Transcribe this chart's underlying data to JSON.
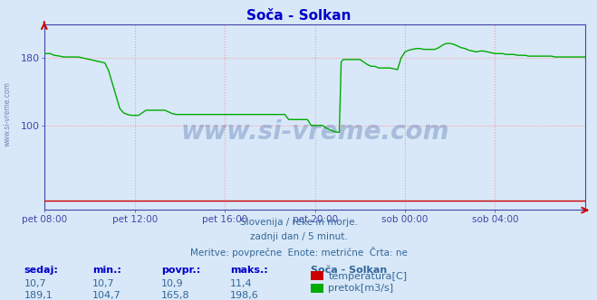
{
  "title": "Soča - Solkan",
  "title_color": "#0000cc",
  "bg_color": "#d8e8f8",
  "plot_bg_color": "#d8e8f8",
  "grid_color": "#ff9999",
  "grid_style": ":",
  "axis_color": "#4444aa",
  "watermark_text": "www.si-vreme.com",
  "watermark_color": "#1a3a8a",
  "watermark_alpha": 0.25,
  "subtitle1": "Slovenija / reke in morje.",
  "subtitle2": "zadnji dan / 5 minut.",
  "subtitle3": "Meritve: povprečne  Enote: metrične  Črta: ne",
  "subtitle_color": "#336699",
  "xlabel_color": "#336699",
  "legend_title": "Soča - Solkan",
  "legend_title_color": "#336699",
  "legend_items": [
    {
      "label": "temperatura[C]",
      "color": "#cc0000"
    },
    {
      "label": "pretok[m3/s]",
      "color": "#00aa00"
    }
  ],
  "stats_labels": [
    "sedaj:",
    "min.:",
    "povpr.:",
    "maks.:"
  ],
  "stats_temp": [
    10.7,
    10.7,
    10.9,
    11.4
  ],
  "stats_flow": [
    189.1,
    104.7,
    165.8,
    198.6
  ],
  "stats_color": "#336699",
  "stats_label_color": "#0000cc",
  "xlim": [
    0,
    288
  ],
  "ylim": [
    0,
    220
  ],
  "ytick_positions": [
    100,
    180
  ],
  "xtick_labels": [
    "pet 08:00",
    "pet 12:00",
    "pet 16:00",
    "pet 20:00",
    "sob 00:00",
    "sob 04:00"
  ],
  "xtick_positions": [
    0,
    48,
    96,
    144,
    192,
    240
  ],
  "grid_yticks": [
    100,
    180
  ],
  "grid_xticks": [
    0,
    48,
    96,
    144,
    192,
    240
  ],
  "flow_data": [
    [
      0,
      185
    ],
    [
      3,
      185
    ],
    [
      5,
      183
    ],
    [
      8,
      182
    ],
    [
      10,
      181
    ],
    [
      12,
      181
    ],
    [
      14,
      181
    ],
    [
      16,
      181
    ],
    [
      18,
      181
    ],
    [
      20,
      180
    ],
    [
      22,
      179
    ],
    [
      24,
      178
    ],
    [
      26,
      177
    ],
    [
      28,
      176
    ],
    [
      30,
      175
    ],
    [
      32,
      174
    ],
    [
      34,
      165
    ],
    [
      36,
      150
    ],
    [
      38,
      135
    ],
    [
      40,
      120
    ],
    [
      42,
      115
    ],
    [
      44,
      113
    ],
    [
      46,
      112
    ],
    [
      48,
      112
    ],
    [
      50,
      112
    ],
    [
      52,
      115
    ],
    [
      54,
      118
    ],
    [
      56,
      118
    ],
    [
      58,
      118
    ],
    [
      60,
      118
    ],
    [
      62,
      118
    ],
    [
      64,
      118
    ],
    [
      66,
      116
    ],
    [
      68,
      114
    ],
    [
      70,
      113
    ],
    [
      72,
      113
    ],
    [
      74,
      113
    ],
    [
      76,
      113
    ],
    [
      78,
      113
    ],
    [
      80,
      113
    ],
    [
      82,
      113
    ],
    [
      84,
      113
    ],
    [
      86,
      113
    ],
    [
      88,
      113
    ],
    [
      90,
      113
    ],
    [
      92,
      113
    ],
    [
      94,
      113
    ],
    [
      96,
      113
    ],
    [
      98,
      113
    ],
    [
      100,
      113
    ],
    [
      102,
      113
    ],
    [
      104,
      113
    ],
    [
      106,
      113
    ],
    [
      108,
      113
    ],
    [
      110,
      113
    ],
    [
      112,
      113
    ],
    [
      114,
      113
    ],
    [
      116,
      113
    ],
    [
      118,
      113
    ],
    [
      120,
      113
    ],
    [
      122,
      113
    ],
    [
      124,
      113
    ],
    [
      126,
      113
    ],
    [
      128,
      113
    ],
    [
      130,
      107
    ],
    [
      132,
      107
    ],
    [
      134,
      107
    ],
    [
      136,
      107
    ],
    [
      138,
      107
    ],
    [
      140,
      107
    ],
    [
      142,
      100
    ],
    [
      144,
      100
    ],
    [
      146,
      100
    ],
    [
      148,
      100
    ],
    [
      150,
      97
    ],
    [
      152,
      95
    ],
    [
      154,
      93
    ],
    [
      156,
      92
    ],
    [
      157,
      92
    ],
    [
      158,
      175
    ],
    [
      159,
      178
    ],
    [
      160,
      178
    ],
    [
      162,
      178
    ],
    [
      164,
      178
    ],
    [
      166,
      178
    ],
    [
      168,
      178
    ],
    [
      170,
      175
    ],
    [
      172,
      172
    ],
    [
      174,
      170
    ],
    [
      176,
      170
    ],
    [
      178,
      168
    ],
    [
      180,
      168
    ],
    [
      182,
      168
    ],
    [
      184,
      168
    ],
    [
      186,
      167
    ],
    [
      188,
      166
    ],
    [
      190,
      180
    ],
    [
      192,
      187
    ],
    [
      194,
      189
    ],
    [
      196,
      190
    ],
    [
      198,
      191
    ],
    [
      200,
      191
    ],
    [
      202,
      190
    ],
    [
      204,
      190
    ],
    [
      206,
      190
    ],
    [
      208,
      190
    ],
    [
      210,
      192
    ],
    [
      212,
      195
    ],
    [
      214,
      197
    ],
    [
      216,
      197
    ],
    [
      218,
      196
    ],
    [
      220,
      194
    ],
    [
      222,
      192
    ],
    [
      224,
      191
    ],
    [
      226,
      189
    ],
    [
      228,
      188
    ],
    [
      230,
      187
    ],
    [
      232,
      188
    ],
    [
      234,
      188
    ],
    [
      236,
      187
    ],
    [
      238,
      186
    ],
    [
      240,
      185
    ],
    [
      242,
      185
    ],
    [
      244,
      185
    ],
    [
      246,
      184
    ],
    [
      248,
      184
    ],
    [
      250,
      184
    ],
    [
      252,
      183
    ],
    [
      254,
      183
    ],
    [
      256,
      183
    ],
    [
      258,
      182
    ],
    [
      260,
      182
    ],
    [
      262,
      182
    ],
    [
      264,
      182
    ],
    [
      266,
      182
    ],
    [
      268,
      182
    ],
    [
      270,
      182
    ],
    [
      272,
      181
    ],
    [
      274,
      181
    ],
    [
      276,
      181
    ],
    [
      278,
      181
    ],
    [
      280,
      181
    ],
    [
      282,
      181
    ],
    [
      284,
      181
    ],
    [
      286,
      181
    ],
    [
      288,
      181
    ]
  ],
  "temp_data": [
    [
      0,
      10.7
    ],
    [
      288,
      10.7
    ]
  ],
  "flow_color": "#00aa00",
  "temp_color": "#cc0000",
  "flow_linewidth": 1.0,
  "temp_linewidth": 1.0
}
